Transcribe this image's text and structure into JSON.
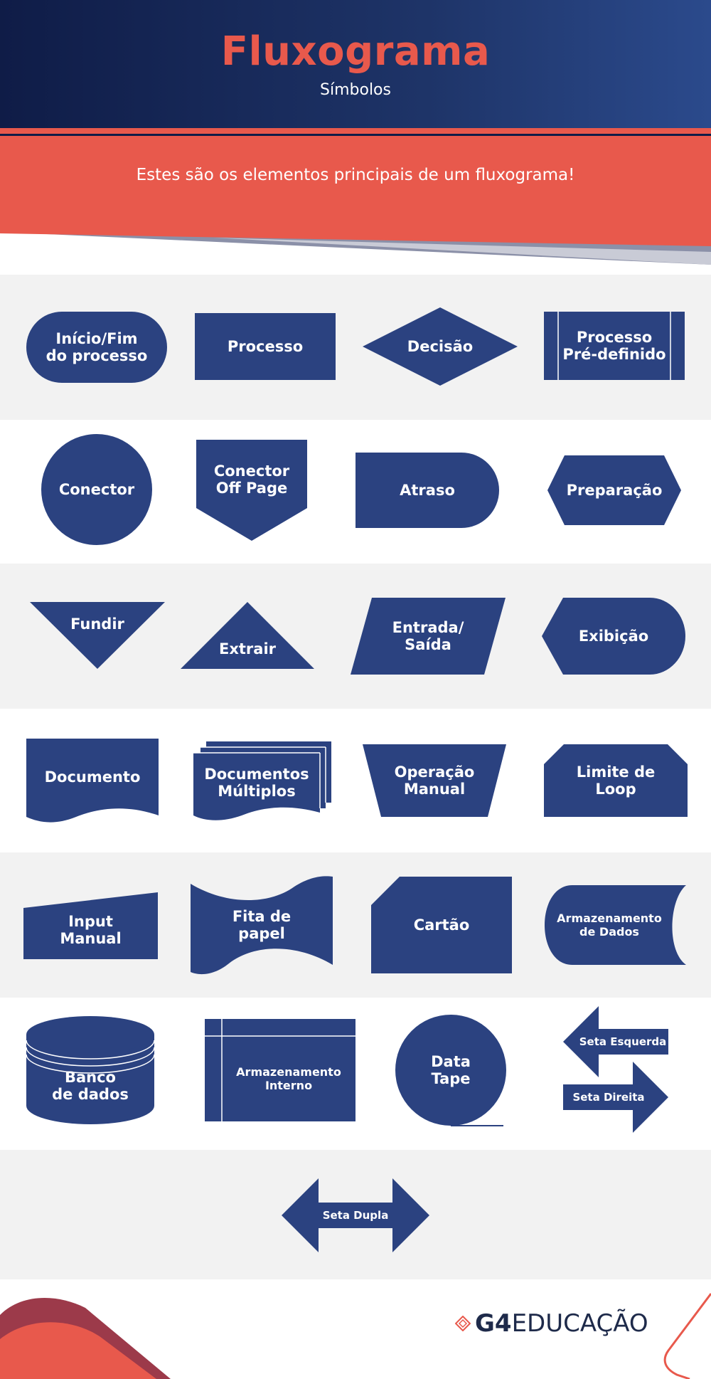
{
  "header": {
    "title": "Fluxograma",
    "subtitle": "Símbolos"
  },
  "banner": {
    "text": "Estes são os elementos principais de um fluxograma!"
  },
  "colors": {
    "navy": "#2b4280",
    "coral": "#e8594c",
    "header_dark": "#0f1c47",
    "gray_band": "#f2f2f2"
  },
  "symbols": {
    "inicio_fim": "Início/Fim\ndo processo",
    "processo": "Processo",
    "decisao": "Decisão",
    "processo_predefinido": "Processo\nPré-definido",
    "conector": "Conector",
    "conector_off_page": "Conector\nOff Page",
    "atraso": "Atraso",
    "preparacao": "Preparação",
    "fundir": "Fundir",
    "extrair": "Extrair",
    "entrada_saida": "Entrada/\nSaída",
    "exibicao": "Exibição",
    "documento": "Documento",
    "documentos_multiplos": "Documentos\nMúltiplos",
    "operacao_manual": "Operação\nManual",
    "limite_loop": "Limite de\nLoop",
    "input_manual": "Input\nManual",
    "fita_papel": "Fita de\npapel",
    "cartao": "Cartão",
    "armazenamento_dados": "Armazenamento\nde Dados",
    "banco_dados": "Banco\nde dados",
    "armazenamento_interno": "Armazenamento\nInterno",
    "data_tape": "Data\nTape",
    "seta_esquerda": "Seta Esquerda",
    "seta_direita": "Seta Direita",
    "seta_dupla": "Seta Dupla"
  },
  "footer": {
    "logo_g4": "G4",
    "logo_text": "EDUCAÇÃO",
    "logo_icon": "diamond-logo-icon"
  }
}
